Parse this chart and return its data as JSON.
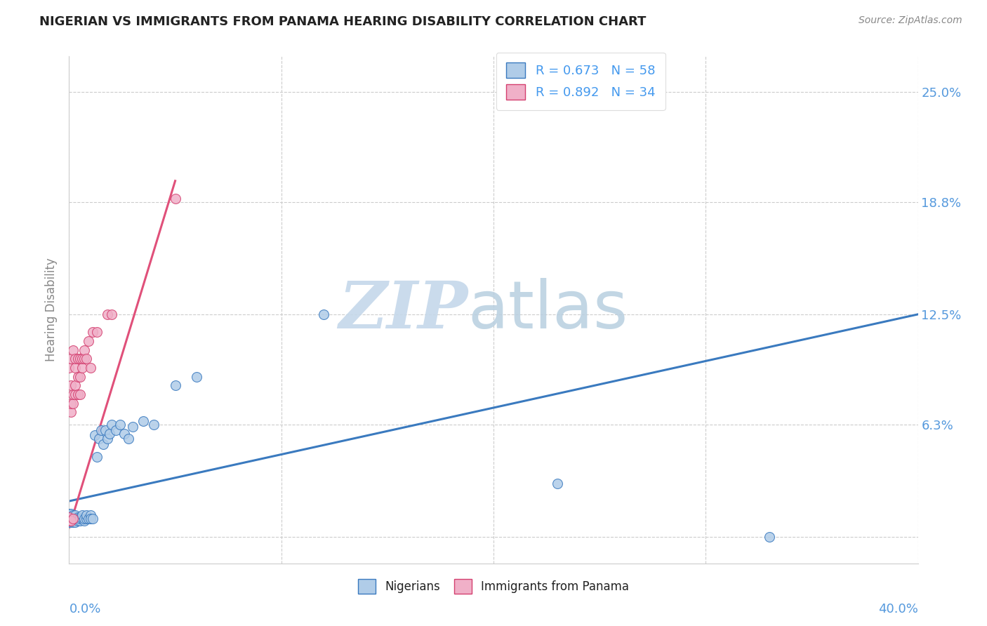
{
  "title": "NIGERIAN VS IMMIGRANTS FROM PANAMA HEARING DISABILITY CORRELATION CHART",
  "source": "Source: ZipAtlas.com",
  "ylabel": "Hearing Disability",
  "xlim": [
    0.0,
    0.4
  ],
  "ylim": [
    -0.015,
    0.27
  ],
  "blue_color": "#b0cce8",
  "pink_color": "#f0b0c8",
  "blue_edge_color": "#3a7abf",
  "pink_edge_color": "#d44070",
  "blue_line_color": "#3a7abf",
  "pink_line_color": "#e0507a",
  "legend_text_color": "#4499ee",
  "axis_tick_color": "#5599dd",
  "watermark_zip_color": "#c5d8ea",
  "watermark_atlas_color": "#b8cfe0",
  "nigerians_x": [
    0.0,
    0.0,
    0.0,
    0.0,
    0.0,
    0.0,
    0.001,
    0.001,
    0.001,
    0.001,
    0.001,
    0.001,
    0.002,
    0.002,
    0.002,
    0.002,
    0.002,
    0.003,
    0.003,
    0.003,
    0.003,
    0.004,
    0.004,
    0.004,
    0.005,
    0.005,
    0.005,
    0.006,
    0.006,
    0.007,
    0.007,
    0.008,
    0.008,
    0.009,
    0.01,
    0.01,
    0.011,
    0.012,
    0.013,
    0.014,
    0.015,
    0.016,
    0.017,
    0.018,
    0.019,
    0.02,
    0.022,
    0.024,
    0.026,
    0.028,
    0.03,
    0.035,
    0.04,
    0.05,
    0.06,
    0.12,
    0.23,
    0.33
  ],
  "nigerians_y": [
    0.012,
    0.01,
    0.008,
    0.013,
    0.009,
    0.011,
    0.01,
    0.012,
    0.009,
    0.011,
    0.008,
    0.013,
    0.01,
    0.009,
    0.011,
    0.008,
    0.012,
    0.009,
    0.01,
    0.012,
    0.008,
    0.01,
    0.011,
    0.009,
    0.009,
    0.011,
    0.01,
    0.01,
    0.012,
    0.009,
    0.01,
    0.01,
    0.012,
    0.01,
    0.012,
    0.01,
    0.01,
    0.057,
    0.045,
    0.055,
    0.06,
    0.052,
    0.06,
    0.055,
    0.058,
    0.063,
    0.06,
    0.063,
    0.058,
    0.055,
    0.062,
    0.065,
    0.063,
    0.085,
    0.09,
    0.125,
    0.03,
    0.0
  ],
  "panama_x": [
    0.0,
    0.0,
    0.0,
    0.001,
    0.001,
    0.001,
    0.001,
    0.001,
    0.002,
    0.002,
    0.002,
    0.002,
    0.003,
    0.003,
    0.003,
    0.003,
    0.004,
    0.004,
    0.004,
    0.005,
    0.005,
    0.005,
    0.006,
    0.006,
    0.007,
    0.007,
    0.008,
    0.009,
    0.01,
    0.011,
    0.013,
    0.018,
    0.02,
    0.05
  ],
  "panama_y": [
    0.009,
    0.011,
    0.095,
    0.009,
    0.07,
    0.075,
    0.085,
    0.1,
    0.01,
    0.075,
    0.08,
    0.105,
    0.08,
    0.085,
    0.095,
    0.1,
    0.08,
    0.09,
    0.1,
    0.08,
    0.09,
    0.1,
    0.095,
    0.1,
    0.1,
    0.105,
    0.1,
    0.11,
    0.095,
    0.115,
    0.115,
    0.125,
    0.125,
    0.19
  ],
  "blue_line_x": [
    0.0,
    0.4
  ],
  "blue_line_y": [
    0.02,
    0.125
  ],
  "pink_line_x": [
    0.0,
    0.05
  ],
  "pink_line_y": [
    0.005,
    0.2
  ]
}
